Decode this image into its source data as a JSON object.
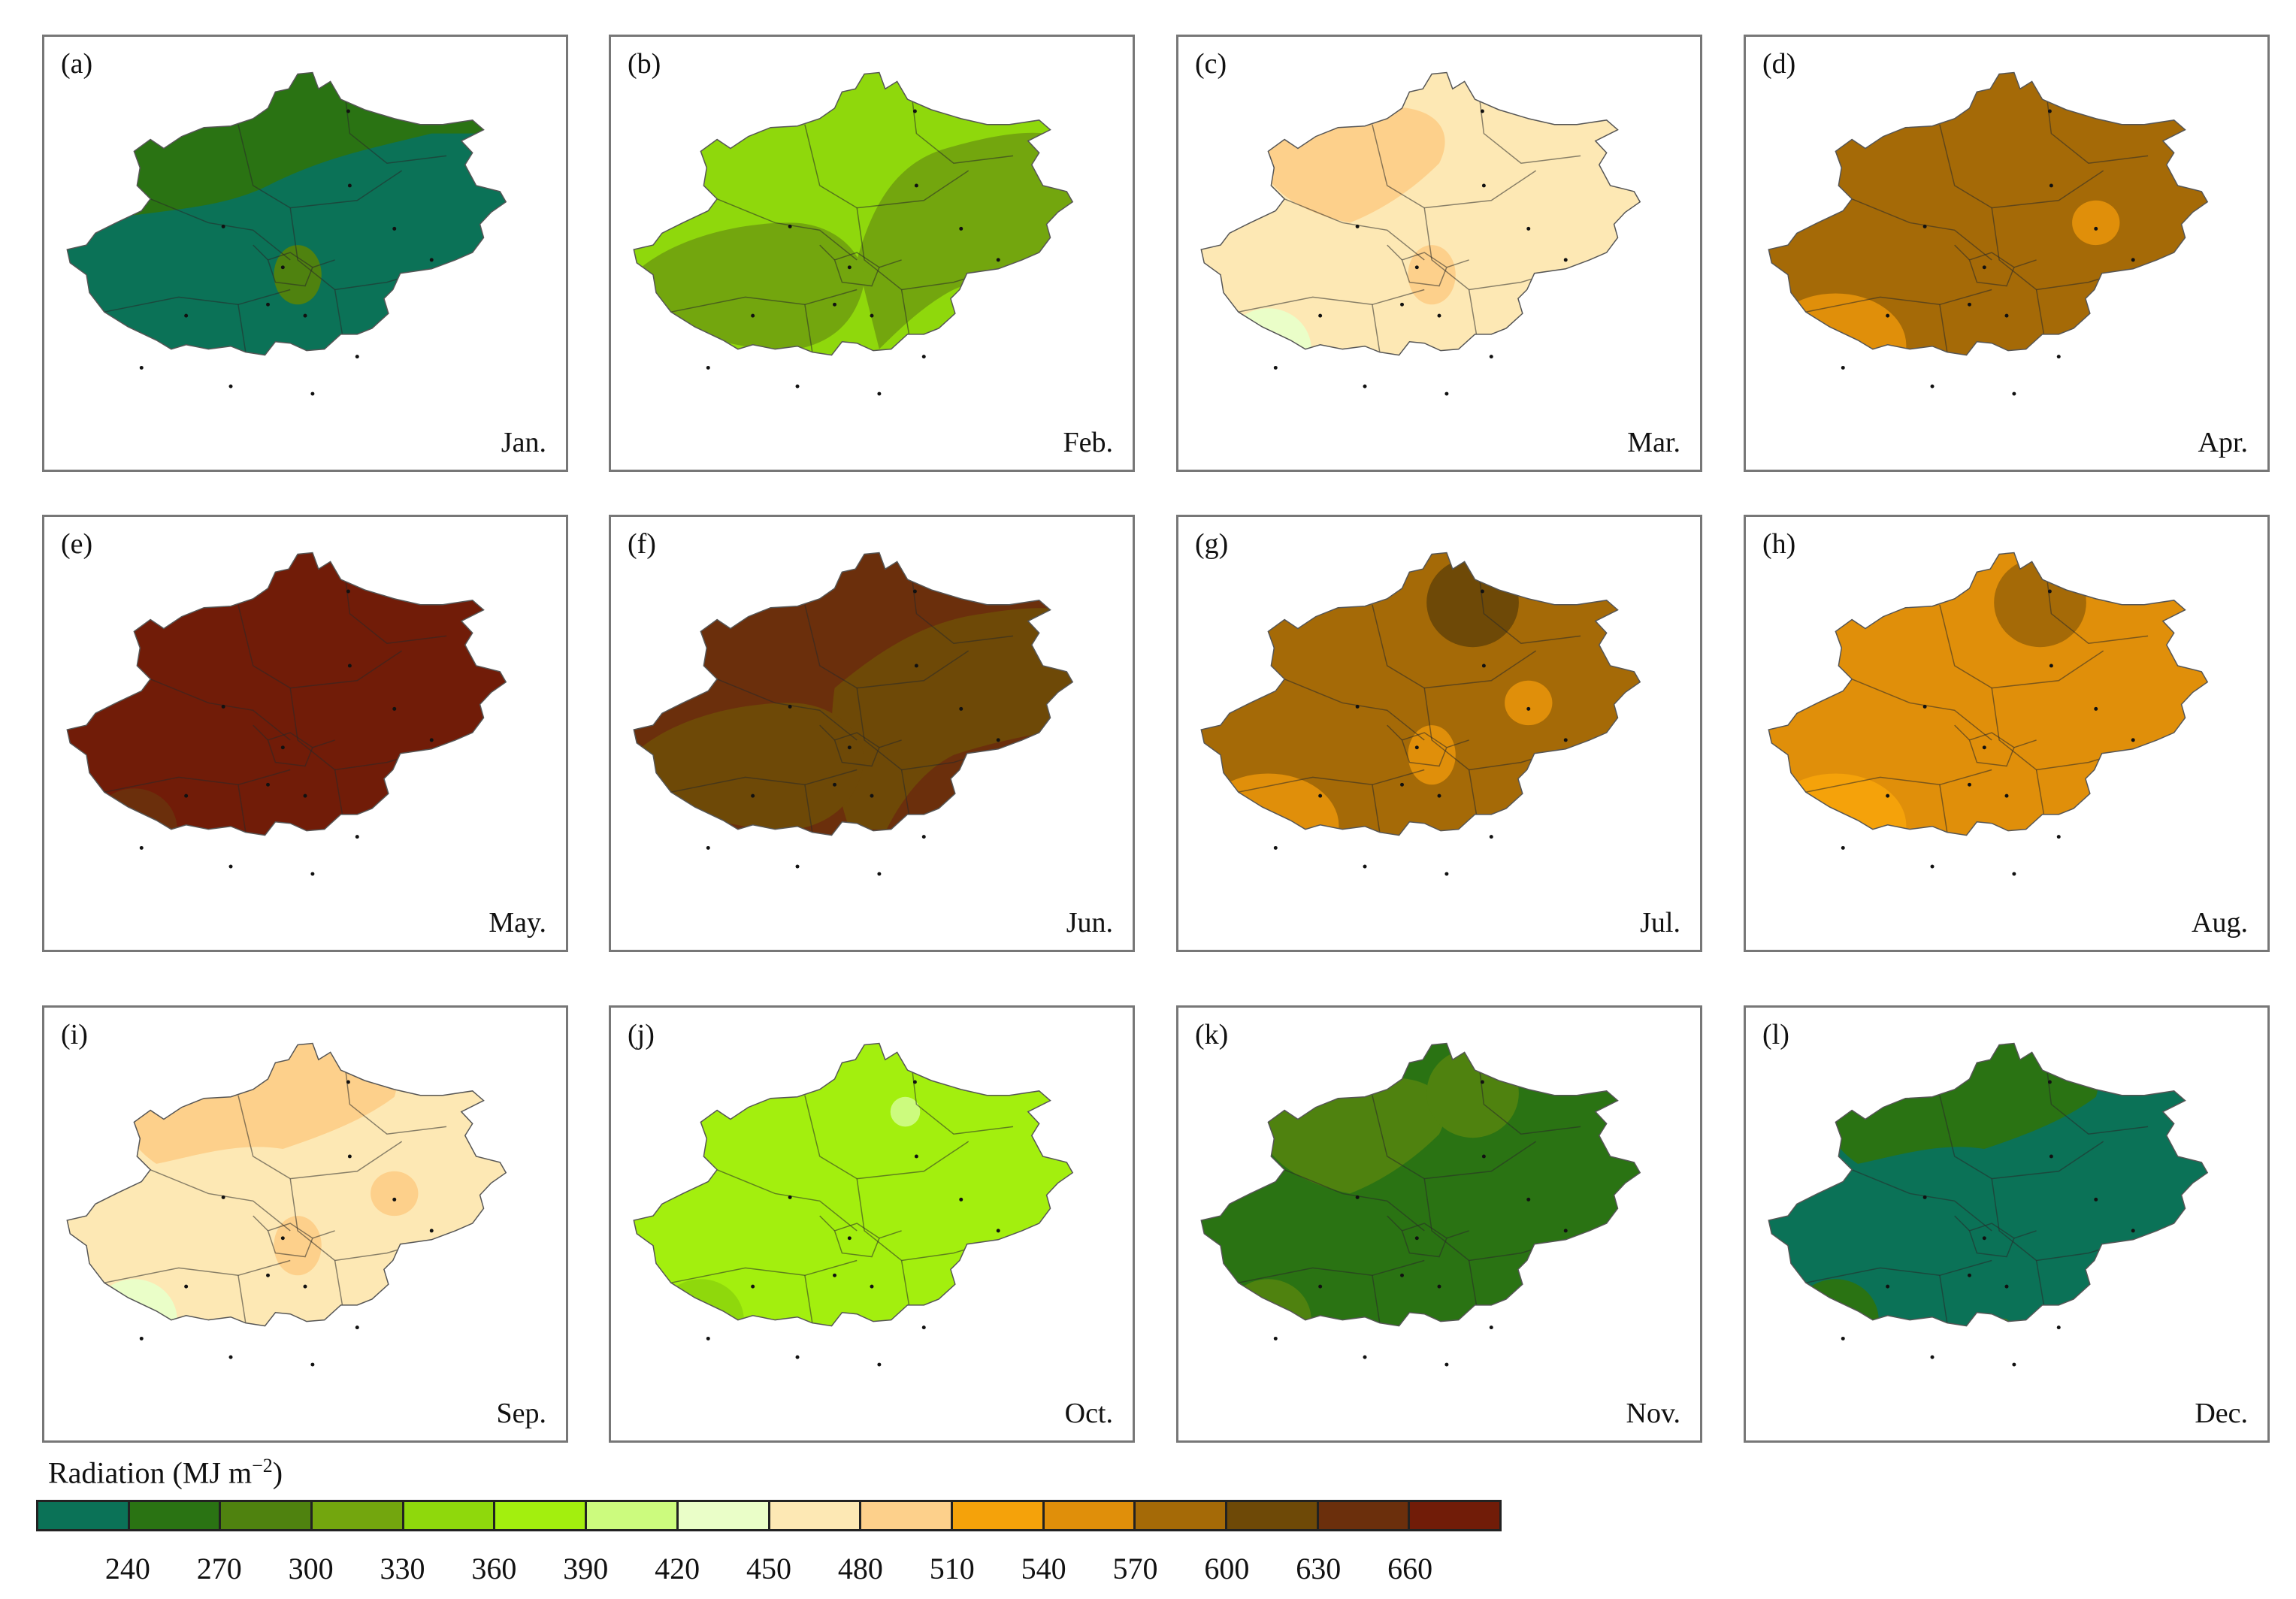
{
  "legend": {
    "title_prefix": "Radiation (MJ m",
    "title_sup": "−2",
    "title_suffix": ")",
    "colors": [
      "#0b7257",
      "#2a7313",
      "#4f820f",
      "#73a60e",
      "#8fd80c",
      "#a3ef0e",
      "#ccfb7e",
      "#eafec8",
      "#fde8b4",
      "#fdd08b",
      "#f5a20a",
      "#e08f0a",
      "#a56a07",
      "#6e4907",
      "#6b2f0c",
      "#711c08"
    ],
    "ticks": [
      "240",
      "270",
      "300",
      "330",
      "360",
      "390",
      "420",
      "450",
      "480",
      "510",
      "540",
      "570",
      "600",
      "630",
      "660"
    ]
  },
  "panels": [
    {
      "letter": "(a)",
      "month": "Jan.",
      "base": "#2a7313",
      "blobs": [
        {
          "c": "#0b7257",
          "shape": "south"
        },
        {
          "c": "#4f820f",
          "shape": "spot-center"
        }
      ]
    },
    {
      "letter": "(b)",
      "month": "Feb.",
      "base": "#8fd80c",
      "blobs": [
        {
          "c": "#73a60e",
          "shape": "east"
        },
        {
          "c": "#73a60e",
          "shape": "southwest"
        },
        {
          "c": "#4f820f",
          "shape": "dot-sw"
        }
      ]
    },
    {
      "letter": "(c)",
      "month": "Mar.",
      "base": "#fde8b4",
      "blobs": [
        {
          "c": "#fdd08b",
          "shape": "northwest"
        },
        {
          "c": "#eafec8",
          "shape": "spot-sw"
        },
        {
          "c": "#fdd08b",
          "shape": "spot-center"
        }
      ]
    },
    {
      "letter": "(d)",
      "month": "Apr.",
      "base": "#a56a07",
      "blobs": [
        {
          "c": "#e08f0a",
          "shape": "spot-sw-big"
        },
        {
          "c": "#e08f0a",
          "shape": "spot-ne"
        }
      ]
    },
    {
      "letter": "(e)",
      "month": "May.",
      "base": "#711c08",
      "blobs": [
        {
          "c": "#6b2f0c",
          "shape": "spot-sw"
        }
      ]
    },
    {
      "letter": "(f)",
      "month": "Jun.",
      "base": "#6b2f0c",
      "blobs": [
        {
          "c": "#6e4907",
          "shape": "northeast"
        },
        {
          "c": "#6e4907",
          "shape": "southwest"
        },
        {
          "c": "#a56a07",
          "shape": "dot-sw"
        }
      ]
    },
    {
      "letter": "(g)",
      "month": "Jul.",
      "base": "#a56a07",
      "blobs": [
        {
          "c": "#6e4907",
          "shape": "spot-north"
        },
        {
          "c": "#e08f0a",
          "shape": "spot-sw-big"
        },
        {
          "c": "#e08f0a",
          "shape": "spot-center"
        },
        {
          "c": "#e08f0a",
          "shape": "spot-ne"
        }
      ]
    },
    {
      "letter": "(h)",
      "month": "Aug.",
      "base": "#e08f0a",
      "blobs": [
        {
          "c": "#a56a07",
          "shape": "spot-north"
        },
        {
          "c": "#f5a20a",
          "shape": "spot-sw-big"
        }
      ]
    },
    {
      "letter": "(i)",
      "month": "Sep.",
      "base": "#fde8b4",
      "blobs": [
        {
          "c": "#fdd08b",
          "shape": "north"
        },
        {
          "c": "#eafec8",
          "shape": "spot-sw"
        },
        {
          "c": "#fdd08b",
          "shape": "spot-center"
        },
        {
          "c": "#fdd08b",
          "shape": "spot-ne"
        }
      ]
    },
    {
      "letter": "(j)",
      "month": "Oct.",
      "base": "#a3ef0e",
      "blobs": [
        {
          "c": "#8fd80c",
          "shape": "spot-sw"
        },
        {
          "c": "#ccfb7e",
          "shape": "dot-north"
        }
      ]
    },
    {
      "letter": "(k)",
      "month": "Nov.",
      "base": "#2a7313",
      "blobs": [
        {
          "c": "#4f820f",
          "shape": "northwest"
        },
        {
          "c": "#4f820f",
          "shape": "spot-sw"
        },
        {
          "c": "#4f820f",
          "shape": "spot-north"
        }
      ]
    },
    {
      "letter": "(l)",
      "month": "Dec.",
      "base": "#0b7257",
      "blobs": [
        {
          "c": "#2a7313",
          "shape": "north"
        },
        {
          "c": "#2a7313",
          "shape": "spot-sw"
        },
        {
          "c": "#4f820f",
          "shape": "dot-center"
        }
      ]
    }
  ]
}
